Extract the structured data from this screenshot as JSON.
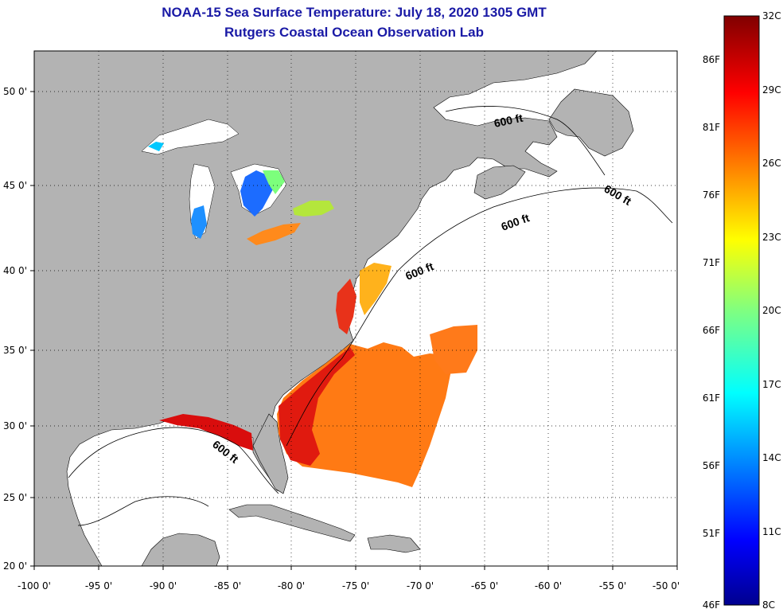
{
  "title_line1": "NOAA-15 Sea Surface Temperature:  July 18, 2020 1305 GMT",
  "title_line2": "Rutgers Coastal Ocean Observation Lab",
  "map": {
    "lon_range": [
      -100,
      -50
    ],
    "lat_range": [
      20,
      52.5
    ],
    "grid": "dotted",
    "land_color": "#b3b3b3",
    "no_data_color": "#ffffff",
    "lon_labels": [
      "-100 0'",
      "-95 0'",
      "-90 0'",
      "-85 0'",
      "-80 0'",
      "-75 0'",
      "-70 0'",
      "-65 0'",
      "-60 0'",
      "-55 0'",
      "-50 0'"
    ],
    "lat_labels": [
      "20 0'",
      "25 0'",
      "30 0'",
      "35 0'",
      "40 0'",
      "45 0'",
      "50 0'"
    ],
    "isobath_label": "600 ft"
  },
  "colorbar": {
    "celsius_labels": [
      "32C",
      "29C",
      "26C",
      "23C",
      "20C",
      "17C",
      "14C",
      "11C",
      "8C"
    ],
    "fahrenheit_labels": [
      "86F",
      "81F",
      "76F",
      "71F",
      "66F",
      "61F",
      "56F",
      "51F",
      "46F"
    ],
    "range_c": [
      8,
      32
    ],
    "colormap": "jet"
  }
}
